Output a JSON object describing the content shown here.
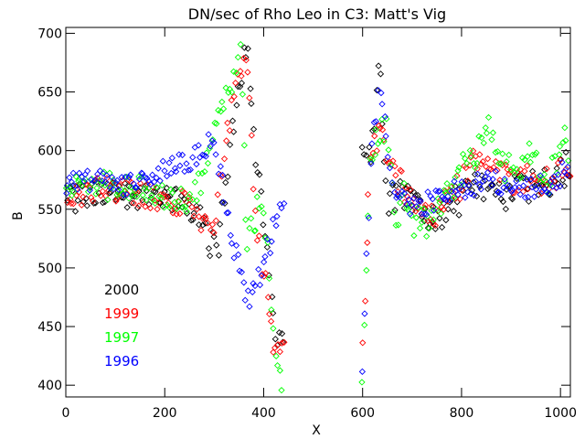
{
  "chart_data": {
    "type": "scatter",
    "title": "DN/sec of Rho Leo in C3: Matt's Vig",
    "xlabel": "X",
    "ylabel": "B",
    "xlim": [
      0,
      1020
    ],
    "ylim": [
      390,
      705
    ],
    "xticks": [
      0,
      200,
      400,
      600,
      800,
      1000
    ],
    "yticks": [
      400,
      450,
      500,
      550,
      600,
      650,
      700
    ],
    "xtick_labels": [
      "0",
      "200",
      "400",
      "600",
      "800",
      "1000"
    ],
    "ytick_labels": [
      "400",
      "450",
      "500",
      "550",
      "600",
      "650",
      "700"
    ],
    "marker": "diamond",
    "legend_position": "lower-left",
    "series": [
      {
        "name": "2000",
        "color": "#000000",
        "segments": [
          {
            "x_start": 0,
            "x_end": 440,
            "step": 4,
            "y": [
              560,
              560,
              560,
              562,
              566,
              566,
              568,
              566,
              564,
              562,
              562,
              560,
              560,
              560,
              558,
              558,
              556,
              552,
              548,
              542,
              520,
              520,
              570,
              620,
              660,
              690,
              600,
              560,
              510,
              440,
              430
            ],
            "spread": 12
          },
          {
            "x_start": 600,
            "x_end": 1020,
            "step": 4,
            "y": [
              590,
              600,
              670,
              560,
              560,
              560,
              552,
              548,
              540,
              544,
              548,
              556,
              560,
              564,
              568,
              568,
              566,
              564,
              564,
              566,
              568,
              570,
              572,
              574,
              580,
              590
            ],
            "spread": 14
          }
        ]
      },
      {
        "name": "1999",
        "color": "#ff0000",
        "segments": [
          {
            "x_start": 0,
            "x_end": 440,
            "step": 4,
            "y": [
              564,
              564,
              564,
              564,
              568,
              568,
              568,
              566,
              566,
              564,
              564,
              562,
              562,
              560,
              560,
              558,
              556,
              550,
              544,
              540,
              520,
              560,
              600,
              640,
              670,
              690,
              560,
              500,
              470,
              420,
              440
            ],
            "spread": 12
          },
          {
            "x_start": 600,
            "x_end": 1020,
            "step": 4,
            "y": [
              440,
              600,
              610,
              600,
              580,
              570,
              556,
              552,
              548,
              550,
              556,
              566,
              576,
              590,
              596,
              584,
              578,
              576,
              574,
              574,
              574,
              572,
              570,
              576,
              584,
              590
            ],
            "spread": 14
          }
        ]
      },
      {
        "name": "1997",
        "color": "#00ff00",
        "segments": [
          {
            "x_start": 0,
            "x_end": 440,
            "step": 4,
            "y": [
              566,
              566,
              566,
              566,
              570,
              570,
              570,
              568,
              568,
              566,
              566,
              566,
              564,
              562,
              564,
              562,
              560,
              560,
              566,
              580,
              600,
              630,
              650,
              660,
              680,
              520,
              540,
              560,
              500,
              420,
              400
            ],
            "spread": 12
          },
          {
            "x_start": 600,
            "x_end": 1020,
            "step": 4,
            "y": [
              400,
              600,
              620,
              620,
              540,
              560,
              540,
              540,
              540,
              550,
              560,
              574,
              582,
              590,
              600,
              620,
              604,
              586,
              582,
              586,
              600,
              590,
              574,
              582,
              620,
              600
            ],
            "spread": 14
          }
        ]
      },
      {
        "name": "1996",
        "color": "#0000ff",
        "segments": [
          {
            "x_start": 0,
            "x_end": 440,
            "step": 4,
            "y": [
              572,
              572,
              574,
              574,
              576,
              574,
              572,
              572,
              570,
              572,
              574,
              576,
              580,
              582,
              586,
              588,
              590,
              592,
              594,
              600,
              610,
              590,
              560,
              520,
              500,
              470,
              480,
              500,
              520,
              540,
              560
            ],
            "spread": 10
          },
          {
            "x_start": 600,
            "x_end": 1020,
            "step": 4,
            "y": [
              420,
              600,
              650,
              600,
              560,
              556,
              552,
              552,
              556,
              560,
              564,
              566,
              568,
              570,
              572,
              572,
              574,
              570,
              568,
              566,
              566,
              568,
              570,
              576,
              580,
              584
            ],
            "spread": 10
          }
        ]
      }
    ]
  }
}
